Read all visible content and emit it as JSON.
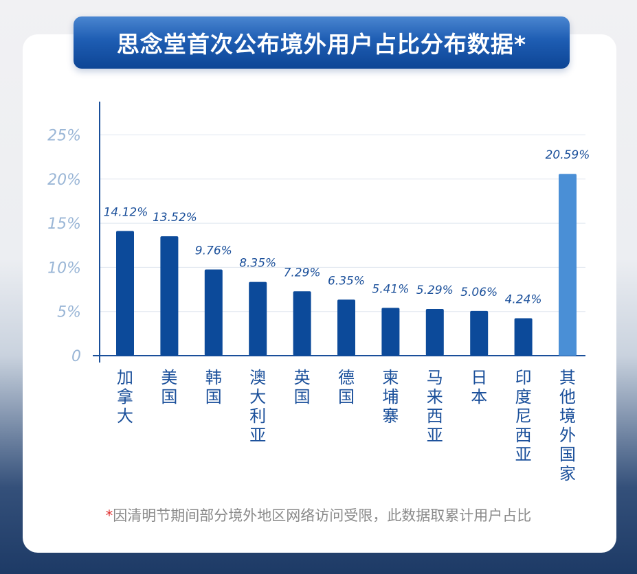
{
  "title": "思念堂首次公布境外用户占比分布数据*",
  "note": {
    "star": "*",
    "text": "因清明节期间部分境外地区网络访问受限，此数据取累计用户占比"
  },
  "colors": {
    "bar": "#0c4a9a",
    "highlight": "#4a8fd6",
    "label": "#1a4f9a",
    "tick": "#9ab6d6"
  },
  "chart_data": {
    "type": "bar",
    "title": "思念堂首次公布境外用户占比分布数据*",
    "categories": [
      "加拿大",
      "美国",
      "韩国",
      "澳大利亚",
      "英国",
      "德国",
      "柬埔寨",
      "马来西亚",
      "日本",
      "印度尼西亚",
      "其他境外国家"
    ],
    "values": [
      14.12,
      13.52,
      9.76,
      8.35,
      7.29,
      6.35,
      5.41,
      5.29,
      5.06,
      4.24,
      20.59
    ],
    "data_labels": [
      "14.12%",
      "13.52%",
      "9.76%",
      "8.35%",
      "7.29%",
      "6.35%",
      "5.41%",
      "5.29%",
      "5.06%",
      "4.24%",
      "20.59%"
    ],
    "yticks": [
      0,
      5,
      10,
      15,
      20,
      25
    ],
    "ytick_labels": [
      "0",
      "5%",
      "10%",
      "15%",
      "20%",
      "25%"
    ],
    "ylim": [
      0,
      25
    ],
    "xlabel": "",
    "ylabel": "",
    "grid": true,
    "legend": "none"
  }
}
